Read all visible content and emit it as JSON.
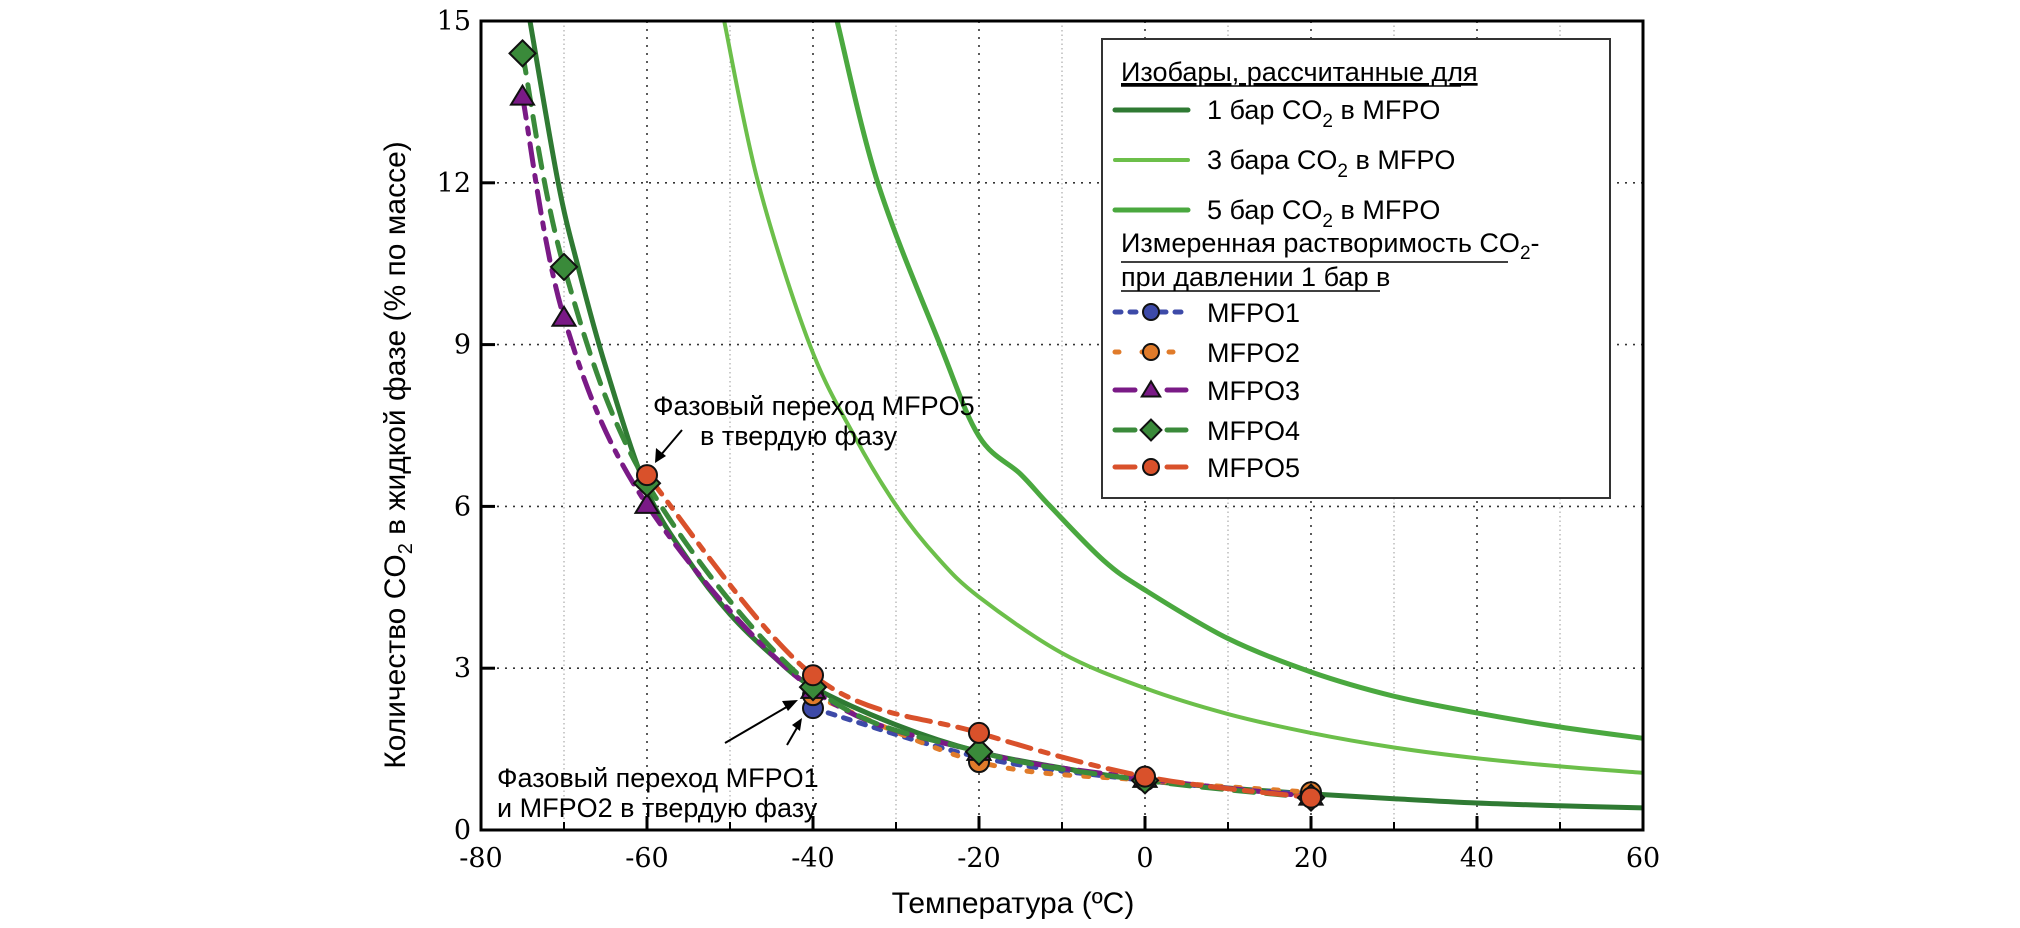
{
  "chart_data": {
    "type": "line",
    "title": "",
    "xlabel": "Температура (ºC)",
    "ylabel": "Количество CO2 в жидкой фазе (% по массе)",
    "ylabel_parts": {
      "pre": "Количество CO",
      "sub": "2",
      "post": " в жидкой фазе (% по массе)"
    },
    "xlim": [
      -80,
      60
    ],
    "ylim": [
      0,
      15
    ],
    "xticks": [
      -80,
      -60,
      -40,
      -20,
      0,
      20,
      40,
      60
    ],
    "xtick_labels": [
      "-80",
      "-60",
      "-40",
      "-20",
      "0",
      "20",
      "40",
      "60"
    ],
    "x_minor_ticks": [
      -70,
      -50,
      -30,
      -10,
      10,
      30,
      50
    ],
    "yticks": [
      0,
      3,
      6,
      9,
      12,
      15
    ],
    "ytick_labels": [
      "0",
      "3",
      "6",
      "9",
      "12",
      "15"
    ],
    "grid": true,
    "legend_position": "top-right",
    "isobars": {
      "heading": "Изобары, рассчитанные для",
      "series": [
        {
          "name": "1 бар CO2 в MFPO",
          "label_pre": "1 бар CO",
          "label_sub": "2",
          "label_post": " в MFPO",
          "color": "#2f7a33",
          "x": [
            -74.1,
            -70.7,
            -68.3,
            -65,
            -60,
            -55,
            -50,
            -45,
            -40,
            -30,
            -20,
            -10,
            0,
            10,
            20,
            30,
            40,
            50,
            60
          ],
          "y": [
            15,
            12,
            10.44,
            8.6,
            6.3,
            5.0,
            4.0,
            3.25,
            2.65,
            1.95,
            1.45,
            1.15,
            0.92,
            0.78,
            0.67,
            0.58,
            0.5,
            0.45,
            0.41
          ]
        },
        {
          "name": "3 бара CO2 в MFPO",
          "label_pre": "3 бара CO",
          "label_sub": "2",
          "label_post": " в MFPO",
          "color": "#6cbf4a",
          "x": [
            -50.7,
            -46.6,
            -40.4,
            -35,
            -29.9,
            -25,
            -20,
            -10,
            0,
            10,
            20,
            30,
            40,
            50,
            60
          ],
          "y": [
            15,
            12,
            9,
            7.3,
            6,
            5.05,
            4.32,
            3.28,
            2.63,
            2.15,
            1.8,
            1.53,
            1.33,
            1.18,
            1.06
          ]
        },
        {
          "name": "5 бар CO2 в MFPO",
          "label_pre": "5 бар CO",
          "label_sub": "2",
          "label_post": " в MFPO",
          "color": "#4aa83f",
          "x": [
            -37.1,
            -32.2,
            -24.7,
            -20,
            -15,
            -11.4,
            -5,
            0,
            10,
            20,
            30,
            40,
            50,
            60
          ],
          "y": [
            15,
            12,
            9,
            7.3,
            6.6,
            6.0,
            5.0,
            4.45,
            3.55,
            2.93,
            2.48,
            2.17,
            1.91,
            1.7
          ]
        }
      ]
    },
    "measured": {
      "heading_line1_pre": "Измеренная растворимость CO",
      "heading_line1_sub": "2",
      "heading_line1_post": "-",
      "heading_line2": "при давлении 1 бар в",
      "series": [
        {
          "name": "MFPO1",
          "color": "#3d4aa8",
          "marker": "circle",
          "dash": "dot",
          "x": [
            -40,
            -20,
            0,
            20
          ],
          "y": [
            2.26,
            1.35,
            0.92,
            0.65
          ]
        },
        {
          "name": "MFPO2",
          "color": "#e07b2a",
          "marker": "circle",
          "dash": "sparse-dot",
          "x": [
            -40,
            -20,
            0,
            20
          ],
          "y": [
            2.5,
            1.26,
            0.92,
            0.7
          ]
        },
        {
          "name": "MFPO3",
          "color": "#7a1a86",
          "marker": "triangle",
          "dash": "dash-dot",
          "x": [
            -75,
            -70,
            -60,
            -40,
            -20,
            0,
            20
          ],
          "y": [
            13.6,
            9.5,
            6.03,
            2.6,
            1.45,
            0.95,
            0.62
          ]
        },
        {
          "name": "MFPO4",
          "color": "#3a8a3a",
          "marker": "diamond",
          "dash": "dash",
          "x": [
            -75,
            -70,
            -60,
            -40,
            -20,
            0,
            20
          ],
          "y": [
            14.4,
            10.44,
            6.43,
            2.65,
            1.45,
            0.92,
            0.6
          ]
        },
        {
          "name": "MFPO5",
          "color": "#d9512b",
          "marker": "circle",
          "dash": "dash-dot-long",
          "x": [
            -60,
            -40,
            -20,
            0,
            20
          ],
          "y": [
            6.58,
            2.87,
            1.8,
            0.99,
            0.6
          ]
        }
      ]
    },
    "annotations": [
      {
        "id": "mfpo5-transition",
        "lines": [
          "Фазовый переход MFPO5",
          "в твердую фазу"
        ],
        "points_to": {
          "x": -60,
          "y": 6.58
        }
      },
      {
        "id": "mfpo1-2-transition",
        "lines": [
          "Фазовый переход MFPO1",
          "и MFPO2 в твердую фазу"
        ],
        "points_to": {
          "x": -40,
          "y": 2.4
        }
      }
    ]
  }
}
